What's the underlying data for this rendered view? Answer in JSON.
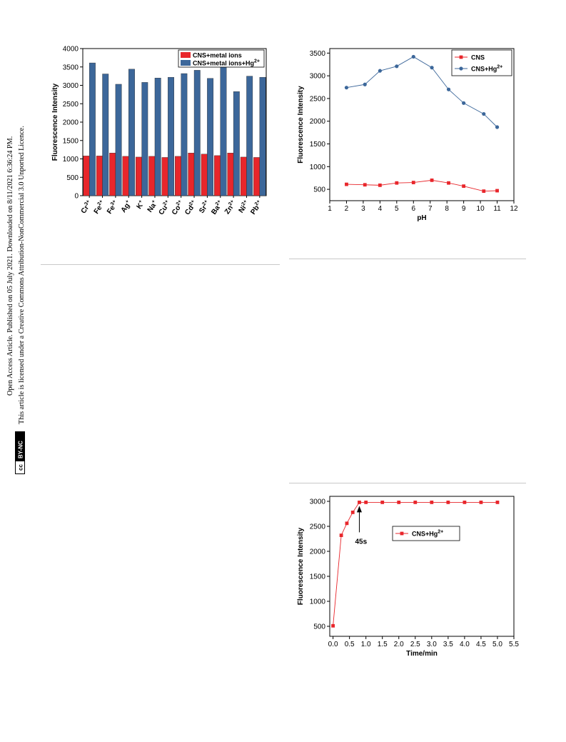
{
  "side_note": {
    "line1": "Open Access Article. Published on 05 July 2021. Downloaded on 8/11/2021 6:36:24 PM.",
    "line2": "This article is licensed under a Creative Commons Attribution-NonCommercial 3.0 Unported Licence.",
    "badge_cc": "cc",
    "badge_text": "BY-NC"
  },
  "chart_data": [
    {
      "type": "bar",
      "ylabel": "Fluorescence Intensity",
      "xlabel": "",
      "ylim": [
        0,
        4000
      ],
      "yticks": [
        0,
        500,
        1000,
        1500,
        2000,
        2500,
        3000,
        3500,
        4000
      ],
      "categories": [
        {
          "base": "Cr",
          "sup": "3+"
        },
        {
          "base": "Fe",
          "sup": "2+"
        },
        {
          "base": "Fe",
          "sup": "3+"
        },
        {
          "base": "Ag",
          "sup": "+"
        },
        {
          "base": "K",
          "sup": "+"
        },
        {
          "base": "Na",
          "sup": "+"
        },
        {
          "base": "Cu",
          "sup": "2+"
        },
        {
          "base": "Co",
          "sup": "2+"
        },
        {
          "base": "Cd",
          "sup": "2+"
        },
        {
          "base": "Sr",
          "sup": "2+"
        },
        {
          "base": "Ba",
          "sup": "2+"
        },
        {
          "base": "Zn",
          "sup": "2+"
        },
        {
          "base": "Ni",
          "sup": "2+"
        },
        {
          "base": "Pb",
          "sup": "2+"
        }
      ],
      "series": [
        {
          "name": "CNS+metal ions",
          "name_sup": "",
          "color": "#e8262b",
          "values": [
            1080,
            1080,
            1160,
            1070,
            1050,
            1070,
            1040,
            1070,
            1160,
            1130,
            1090,
            1160,
            1050,
            1040
          ]
        },
        {
          "name": "CNS+metal ions+Hg",
          "name_sup": "2+",
          "color": "#3c679a",
          "values": [
            3610,
            3310,
            3030,
            3440,
            3080,
            3200,
            3220,
            3320,
            3410,
            3190,
            3660,
            2830,
            3250,
            3220
          ]
        }
      ],
      "legend": "top-right",
      "grid": false
    },
    {
      "type": "line",
      "xlabel": "pH",
      "ylabel": "Fluorescence Intensity",
      "xlim": [
        1,
        12
      ],
      "ylim": [
        250,
        3600
      ],
      "xticks": [
        1,
        2,
        3,
        4,
        5,
        6,
        7,
        8,
        9,
        10,
        11,
        12
      ],
      "yticks": [
        500,
        1000,
        1500,
        2000,
        2500,
        3000,
        3500
      ],
      "series": [
        {
          "name": "CNS",
          "name_sup": "",
          "color": "#e8262b",
          "marker": "square",
          "x": [
            2,
            3.1,
            4,
            5,
            6,
            7.1,
            8.1,
            9,
            10.2,
            11
          ],
          "y": [
            610,
            600,
            590,
            640,
            650,
            700,
            640,
            570,
            460,
            470
          ]
        },
        {
          "name": "CNS+Hg",
          "name_sup": "2+",
          "color": "#3c679a",
          "marker": "circle",
          "x": [
            2,
            3.1,
            4,
            5,
            6,
            7.1,
            8.1,
            9,
            10.2,
            11
          ],
          "y": [
            2740,
            2810,
            3110,
            3210,
            3420,
            3180,
            2700,
            2400,
            2160,
            1870
          ]
        }
      ],
      "legend": "top-right",
      "grid": false
    },
    {
      "type": "line",
      "xlabel": "Time/min",
      "ylabel": "Fluorescence Intensity",
      "xlim": [
        -0.1,
        5.5
      ],
      "ylim": [
        300,
        3100
      ],
      "xticks": [
        "0.0",
        "0.5",
        "1.0",
        "1.5",
        "2.0",
        "2.5",
        "3.0",
        "3.5",
        "4.0",
        "4.5",
        "5.0",
        "5.5"
      ],
      "yticks": [
        500,
        1000,
        1500,
        2000,
        2500,
        3000
      ],
      "series": [
        {
          "name": "CNS+Hg",
          "name_sup": "2+",
          "color": "#e8262b",
          "marker": "square",
          "x": [
            0,
            0.25,
            0.42,
            0.6,
            0.8,
            1.0,
            1.5,
            2.0,
            2.5,
            3.0,
            3.5,
            4.0,
            4.5,
            5.0
          ],
          "y": [
            510,
            2320,
            2560,
            2780,
            2980,
            2980,
            2980,
            2980,
            2980,
            2980,
            2980,
            2980,
            2980,
            2980
          ]
        }
      ],
      "annotation": {
        "text": "45s",
        "x": 0.8,
        "y": 2980
      },
      "legend": "center-right",
      "grid": false
    }
  ]
}
